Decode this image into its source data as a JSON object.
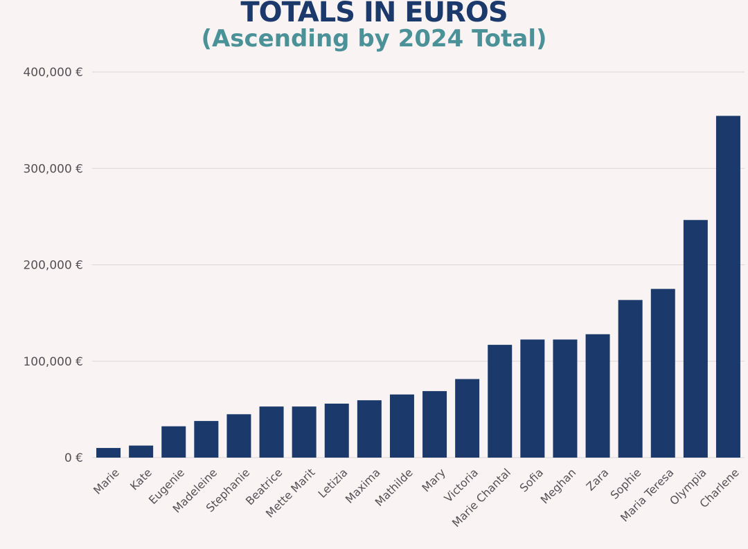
{
  "chart_data": {
    "type": "bar",
    "title": "TOTALS IN EUROS",
    "subtitle": "(Ascending by 2024 Total)",
    "categories": [
      "Marie",
      "Kate",
      "Eugenie",
      "Madeleine",
      "Stephanie",
      "Beatrice",
      "Mette Marit",
      "Letizia",
      "Maxima",
      "Mathilde",
      "Mary",
      "Victoria",
      "Marie Chantal",
      "Sofia",
      "Meghan",
      "Zara",
      "Sophie",
      "Maria Teresa",
      "Olympia",
      "Charlene"
    ],
    "values": [
      10000,
      12500,
      32500,
      38000,
      45000,
      53000,
      53000,
      56000,
      59500,
      65500,
      69000,
      81500,
      117000,
      122500,
      122500,
      128000,
      163500,
      175000,
      246500,
      354500
    ],
    "ylim": [
      0,
      400000
    ],
    "yticks": [
      0,
      100000,
      200000,
      300000,
      400000
    ],
    "ytick_labels": [
      "0 €",
      "100,000 €",
      "200,000 €",
      "300,000 €",
      "400,000 €"
    ],
    "xlabel": "",
    "ylabel": "",
    "grid": true,
    "legend": "none",
    "colors": {
      "bar": "#1b3a6b",
      "title": "#1b3a6b",
      "subtitle": "#4a9298",
      "grid": "#dcd6d6",
      "background": "#f9f4f3"
    }
  }
}
